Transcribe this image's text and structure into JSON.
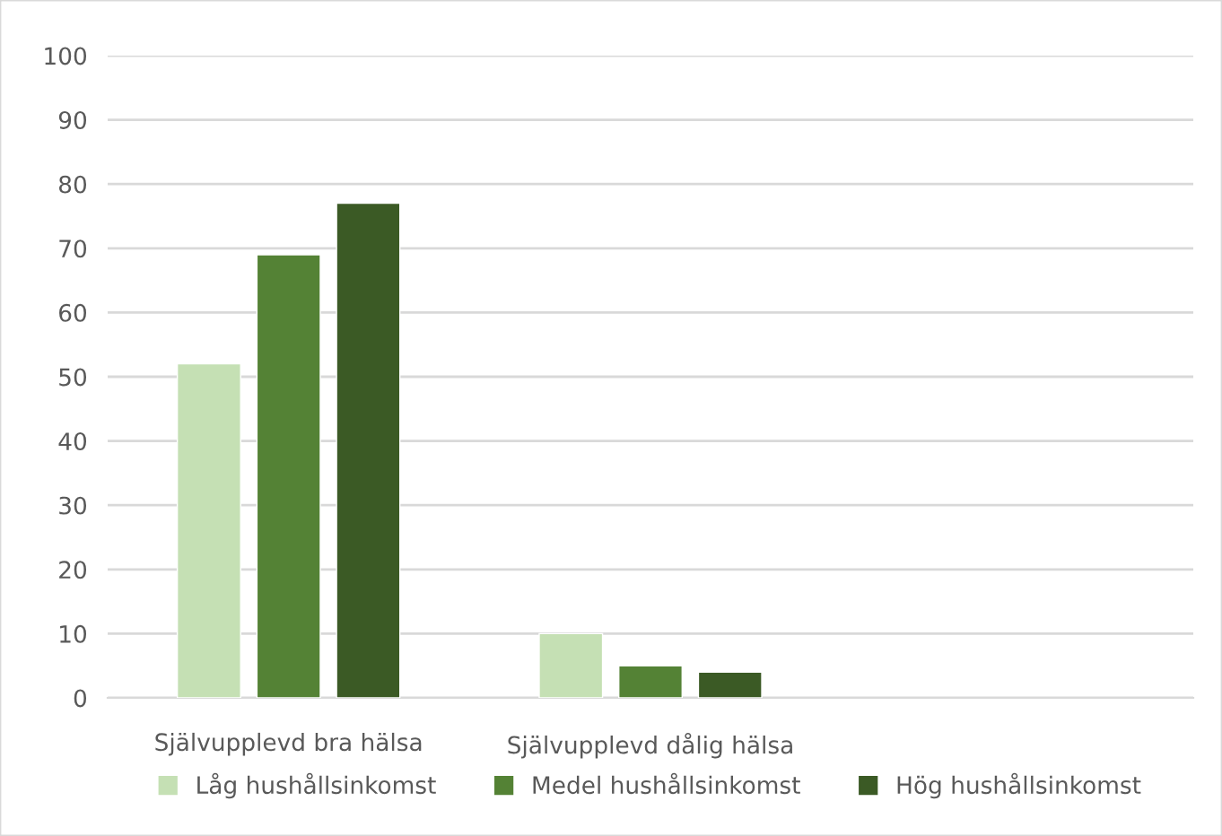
{
  "chart_data": {
    "type": "bar",
    "categories": [
      "Självupplevd bra hälsa",
      "Självupplevd dålig hälsa",
      null
    ],
    "series": [
      {
        "name": "Låg hushållsinkomst",
        "color": "#c5e0b4",
        "values": [
          52,
          10,
          null
        ]
      },
      {
        "name": "Medel hushållsinkomst",
        "color": "#548235",
        "values": [
          69,
          5,
          null
        ]
      },
      {
        "name": "Hög hushållsinkomst",
        "color": "#3b5a25",
        "values": [
          77,
          4,
          null
        ]
      }
    ],
    "ylim": [
      0,
      100
    ],
    "yticks": [
      0,
      10,
      20,
      30,
      40,
      50,
      60,
      70,
      80,
      90,
      100
    ],
    "grid": "y",
    "legend": "bottom"
  }
}
